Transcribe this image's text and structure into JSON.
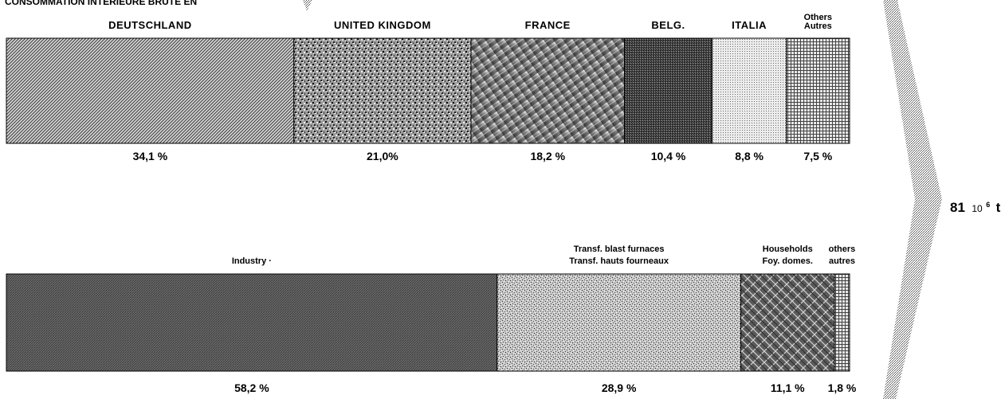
{
  "header_text": "CONSOMMATION INTÉRIEURE BRUTE EN",
  "total": {
    "value": "81",
    "unit_base": "10",
    "unit_exp": "6",
    "unit": "t"
  },
  "chart_data": [
    {
      "type": "bar",
      "stacked": true,
      "orientation": "horizontal",
      "series": [
        {
          "name": "DEUTSCHLAND",
          "label": [
            "DEUTSCHLAND"
          ],
          "value": 34.1,
          "value_label": "34,1 %",
          "pattern": "diag-fine"
        },
        {
          "name": "UNITED KINGDOM",
          "label": [
            "UNITED KINGDOM"
          ],
          "value": 21.0,
          "value_label": "21,0%",
          "pattern": "speckle"
        },
        {
          "name": "FRANCE",
          "label": [
            "FRANCE"
          ],
          "value": 18.2,
          "value_label": "18,2  %",
          "pattern": "streak"
        },
        {
          "name": "BELG.",
          "label": [
            "BELG."
          ],
          "value": 10.4,
          "value_label": "10,4 %",
          "pattern": "cross-dark"
        },
        {
          "name": "ITALIA",
          "label": [
            "ITALIA"
          ],
          "value": 8.8,
          "value_label": "8,8 %",
          "pattern": "dots-light"
        },
        {
          "name": "Others Autres",
          "label": [
            "Others",
            "Autres"
          ],
          "value": 7.5,
          "value_label": "7,5 %",
          "pattern": "grid"
        }
      ]
    },
    {
      "type": "bar",
      "stacked": true,
      "orientation": "horizontal",
      "series": [
        {
          "name": "Industry",
          "label": [
            "Industry  ·"
          ],
          "value": 58.2,
          "value_label": "58,2 %",
          "pattern": "diag-dark"
        },
        {
          "name": "Transf. blast furnaces / Transf. hauts fourneaux",
          "label": [
            "Transf. blast furnaces",
            "Transf. hauts fourneaux"
          ],
          "value": 28.9,
          "value_label": "28,9 %",
          "pattern": "speckle-light"
        },
        {
          "name": "Households / Foy. domes.",
          "label": [
            "Households",
            "Foy. domes."
          ],
          "value": 11.1,
          "value_label": "11,1  %",
          "pattern": "cross-hatch"
        },
        {
          "name": "others autres",
          "label": [
            "others",
            "autres"
          ],
          "value": 1.8,
          "value_label": "1,8 %",
          "pattern": "grid"
        }
      ]
    }
  ]
}
